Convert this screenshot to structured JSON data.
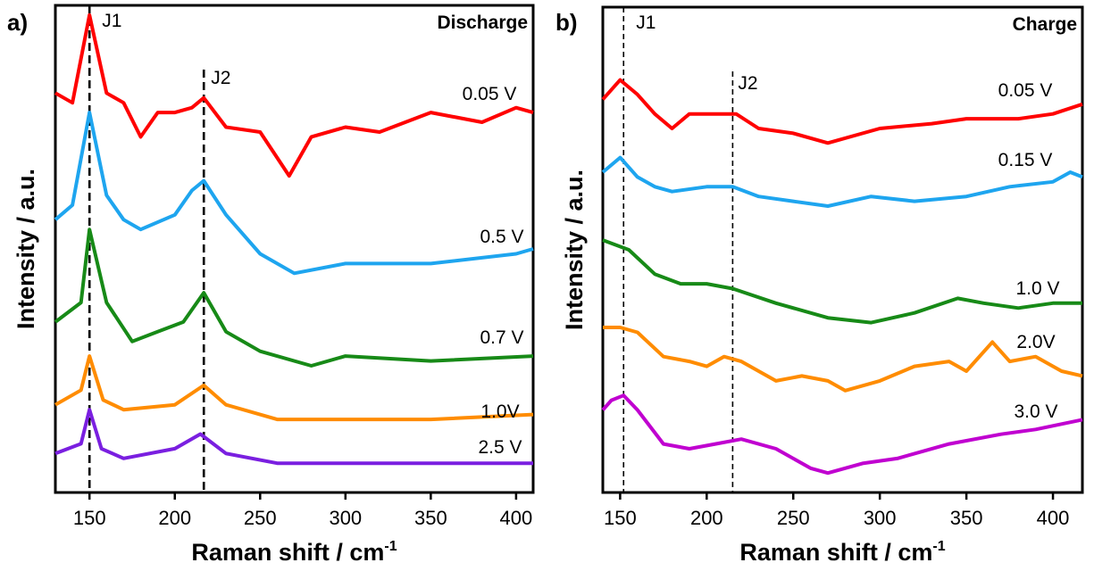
{
  "chart_data": [
    {
      "type": "line",
      "panel_label": "a)",
      "title": "Discharge",
      "xlabel": "Raman shift / cm",
      "xlabel_superscript": "-1",
      "ylabel": "Intensity / a.u.",
      "xlim": [
        130,
        410
      ],
      "ylim": [
        0,
        100
      ],
      "xticks": [
        150,
        200,
        250,
        300,
        350,
        400
      ],
      "grid": false,
      "reference_lines": [
        {
          "label": "J1",
          "x": 150
        },
        {
          "label": "J2",
          "x": 217
        }
      ],
      "series": [
        {
          "name": "0.05 V",
          "color": "#ff0000",
          "x": [
            130,
            140,
            150,
            160,
            170,
            180,
            190,
            200,
            210,
            217,
            230,
            250,
            267,
            280,
            300,
            320,
            350,
            380,
            400,
            410
          ],
          "y": [
            82,
            80,
            98,
            82,
            80,
            73,
            78,
            78,
            79,
            81,
            75,
            74,
            65,
            73,
            75,
            74,
            78,
            76,
            79,
            78
          ]
        },
        {
          "name": "0.5 V",
          "color": "#1ea5ef",
          "x": [
            130,
            140,
            150,
            160,
            170,
            180,
            200,
            210,
            217,
            230,
            250,
            270,
            300,
            350,
            400,
            410
          ],
          "y": [
            56,
            59,
            78,
            61,
            56,
            54,
            57,
            62,
            64,
            57,
            49,
            45,
            47,
            47,
            49,
            50
          ]
        },
        {
          "name": "0.7 V",
          "color": "#178a17",
          "x": [
            130,
            145,
            150,
            160,
            175,
            190,
            205,
            217,
            230,
            250,
            280,
            300,
            350,
            410
          ],
          "y": [
            35,
            39,
            54,
            39,
            31,
            33,
            35,
            41,
            33,
            29,
            26,
            28,
            27,
            28
          ]
        },
        {
          "name": "1.0V",
          "color": "#ff8c00",
          "x": [
            130,
            145,
            150,
            158,
            170,
            200,
            217,
            230,
            260,
            300,
            350,
            410
          ],
          "y": [
            18,
            21,
            28,
            19,
            17,
            18,
            22,
            18,
            15,
            15,
            15,
            16
          ]
        },
        {
          "name": "2.5 V",
          "color": "#7a1fe0",
          "x": [
            130,
            145,
            150,
            157,
            170,
            200,
            215,
            230,
            260,
            300,
            350,
            410
          ],
          "y": [
            8,
            10,
            17,
            9,
            7,
            9,
            12,
            8,
            6,
            6,
            6,
            6
          ]
        }
      ]
    },
    {
      "type": "line",
      "panel_label": "b)",
      "title": "Charge",
      "xlabel": "Raman shift / cm",
      "xlabel_superscript": "-1",
      "ylabel": "Intensity / a.u.",
      "xlim": [
        140,
        417
      ],
      "ylim": [
        0,
        100
      ],
      "xticks": [
        150,
        200,
        250,
        300,
        350,
        400
      ],
      "grid": false,
      "reference_lines": [
        {
          "label": "J1",
          "x": 152
        },
        {
          "label": "J2",
          "x": 215
        }
      ],
      "series": [
        {
          "name": "0.05 V",
          "color": "#ff0000",
          "x": [
            140,
            150,
            160,
            170,
            180,
            190,
            200,
            210,
            217,
            230,
            250,
            270,
            300,
            330,
            350,
            380,
            400,
            417
          ],
          "y": [
            81,
            85,
            82,
            78,
            75,
            78,
            78,
            78,
            78,
            75,
            74,
            72,
            75,
            76,
            77,
            77,
            78,
            80
          ]
        },
        {
          "name": "0.15 V",
          "color": "#1ea5ef",
          "x": [
            140,
            150,
            160,
            170,
            180,
            200,
            215,
            230,
            250,
            270,
            295,
            320,
            350,
            375,
            400,
            410,
            417
          ],
          "y": [
            66,
            69,
            65,
            63,
            62,
            63,
            63,
            61,
            60,
            59,
            61,
            60,
            61,
            63,
            64,
            66,
            65
          ]
        },
        {
          "name": "1.0 V",
          "color": "#178a17",
          "x": [
            140,
            155,
            170,
            185,
            200,
            215,
            240,
            270,
            295,
            320,
            345,
            360,
            380,
            400,
            417
          ],
          "y": [
            52,
            50,
            45,
            43,
            43,
            42,
            39,
            36,
            35,
            37,
            40,
            39,
            38,
            39,
            39
          ]
        },
        {
          "name": "2.0V",
          "color": "#ff8c00",
          "x": [
            140,
            150,
            160,
            175,
            190,
            200,
            210,
            220,
            240,
            255,
            270,
            280,
            300,
            320,
            340,
            350,
            365,
            375,
            390,
            405,
            417
          ],
          "y": [
            34,
            34,
            33,
            28,
            27,
            26,
            28,
            27,
            23,
            24,
            23,
            21,
            23,
            26,
            27,
            25,
            31,
            27,
            28,
            25,
            24
          ]
        },
        {
          "name": "3.0 V",
          "color": "#c000d0",
          "x": [
            140,
            145,
            152,
            160,
            175,
            190,
            205,
            220,
            240,
            260,
            270,
            290,
            310,
            340,
            370,
            390,
            417
          ],
          "y": [
            17,
            19,
            20,
            17,
            10,
            9,
            10,
            11,
            9,
            5,
            4,
            6,
            7,
            10,
            12,
            13,
            15
          ]
        }
      ]
    }
  ]
}
